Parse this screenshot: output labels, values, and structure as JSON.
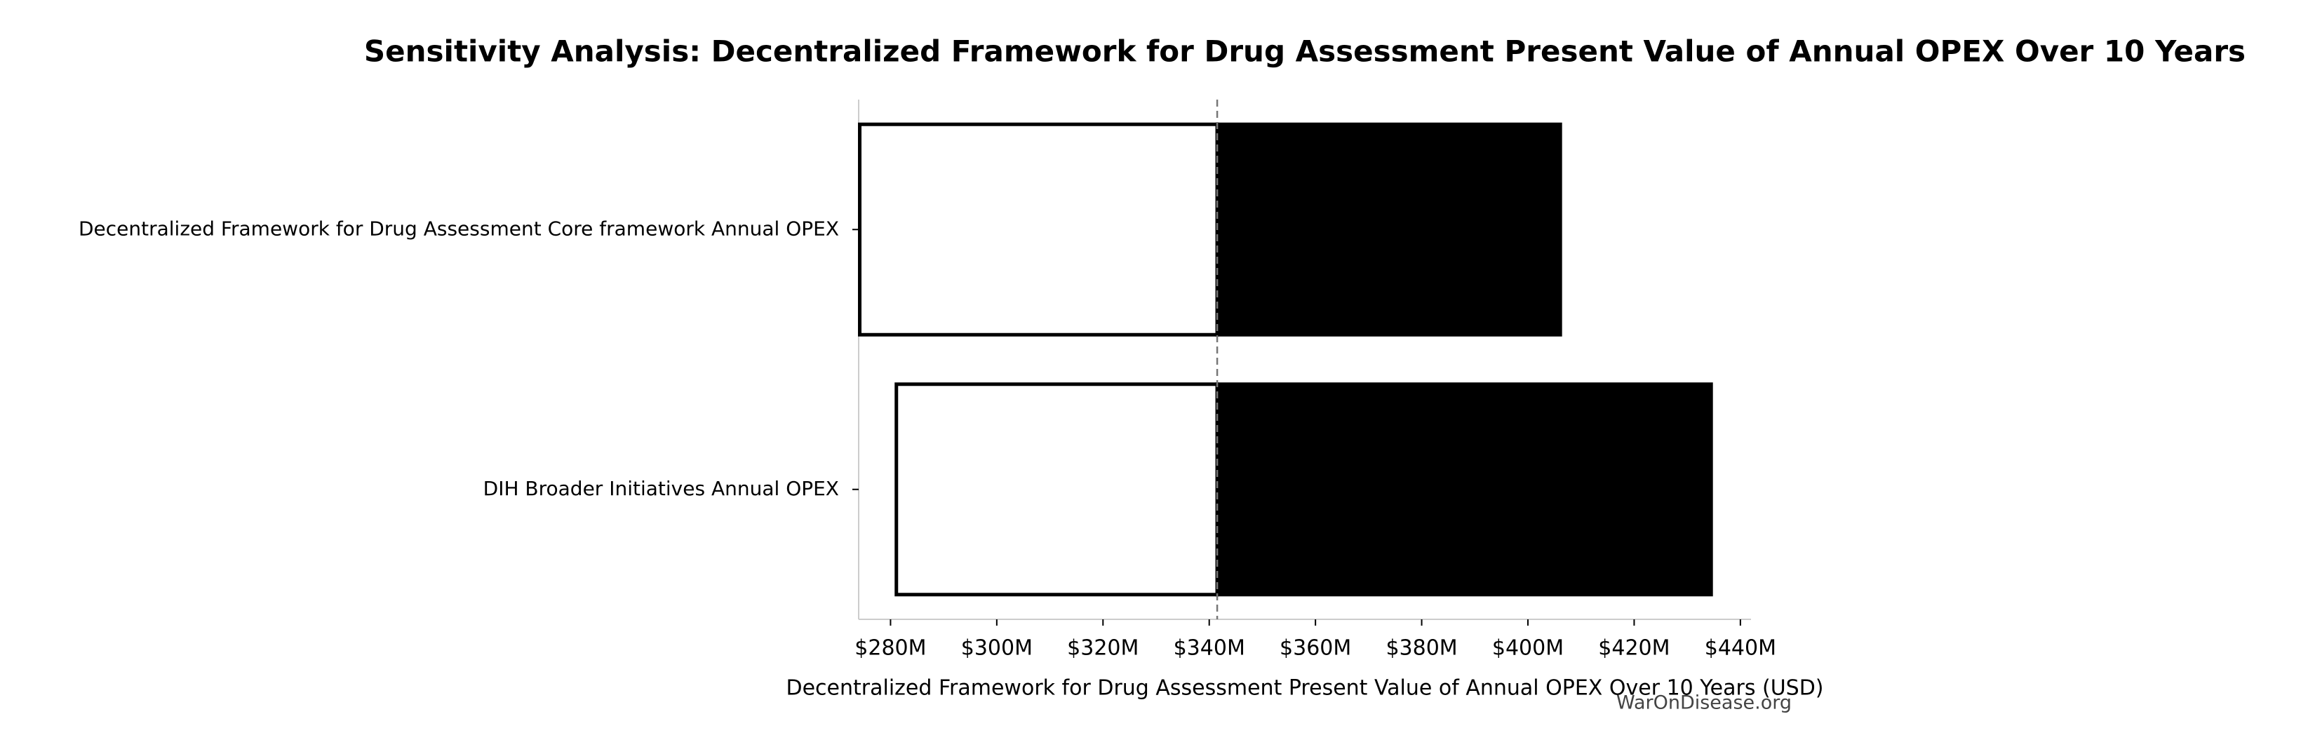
{
  "chart_data": {
    "type": "tornado",
    "title": "Sensitivity Analysis: Decentralized Framework for Drug Assessment Present Value of Annual OPEX Over 10 Years",
    "x_label": "Decentralized Framework for Drug Assessment Present Value of Annual OPEX Over 10 Years (USD)",
    "watermark": "WarOnDisease.org",
    "categories": [
      "Decentralized Framework for Drug Assessment Core framework Annual OPEX",
      "DIH Broader Initiatives Annual OPEX"
    ],
    "baseline": 341.5,
    "low_values": [
      274.2,
      281.1
    ],
    "high_values": [
      406.1,
      434.5
    ],
    "low_color": "#ffffff",
    "high_color": "#000000",
    "xlim": [
      274,
      442
    ],
    "xticks": [
      {
        "value": 280,
        "label": "$280M"
      },
      {
        "value": 300,
        "label": "$300M"
      },
      {
        "value": 320,
        "label": "$320M"
      },
      {
        "value": 340,
        "label": "$340M"
      },
      {
        "value": 360,
        "label": "$360M"
      },
      {
        "value": 380,
        "label": "$380M"
      },
      {
        "value": 400,
        "label": "$400M"
      },
      {
        "value": 420,
        "label": "$420M"
      },
      {
        "value": 440,
        "label": "$440M"
      }
    ]
  }
}
